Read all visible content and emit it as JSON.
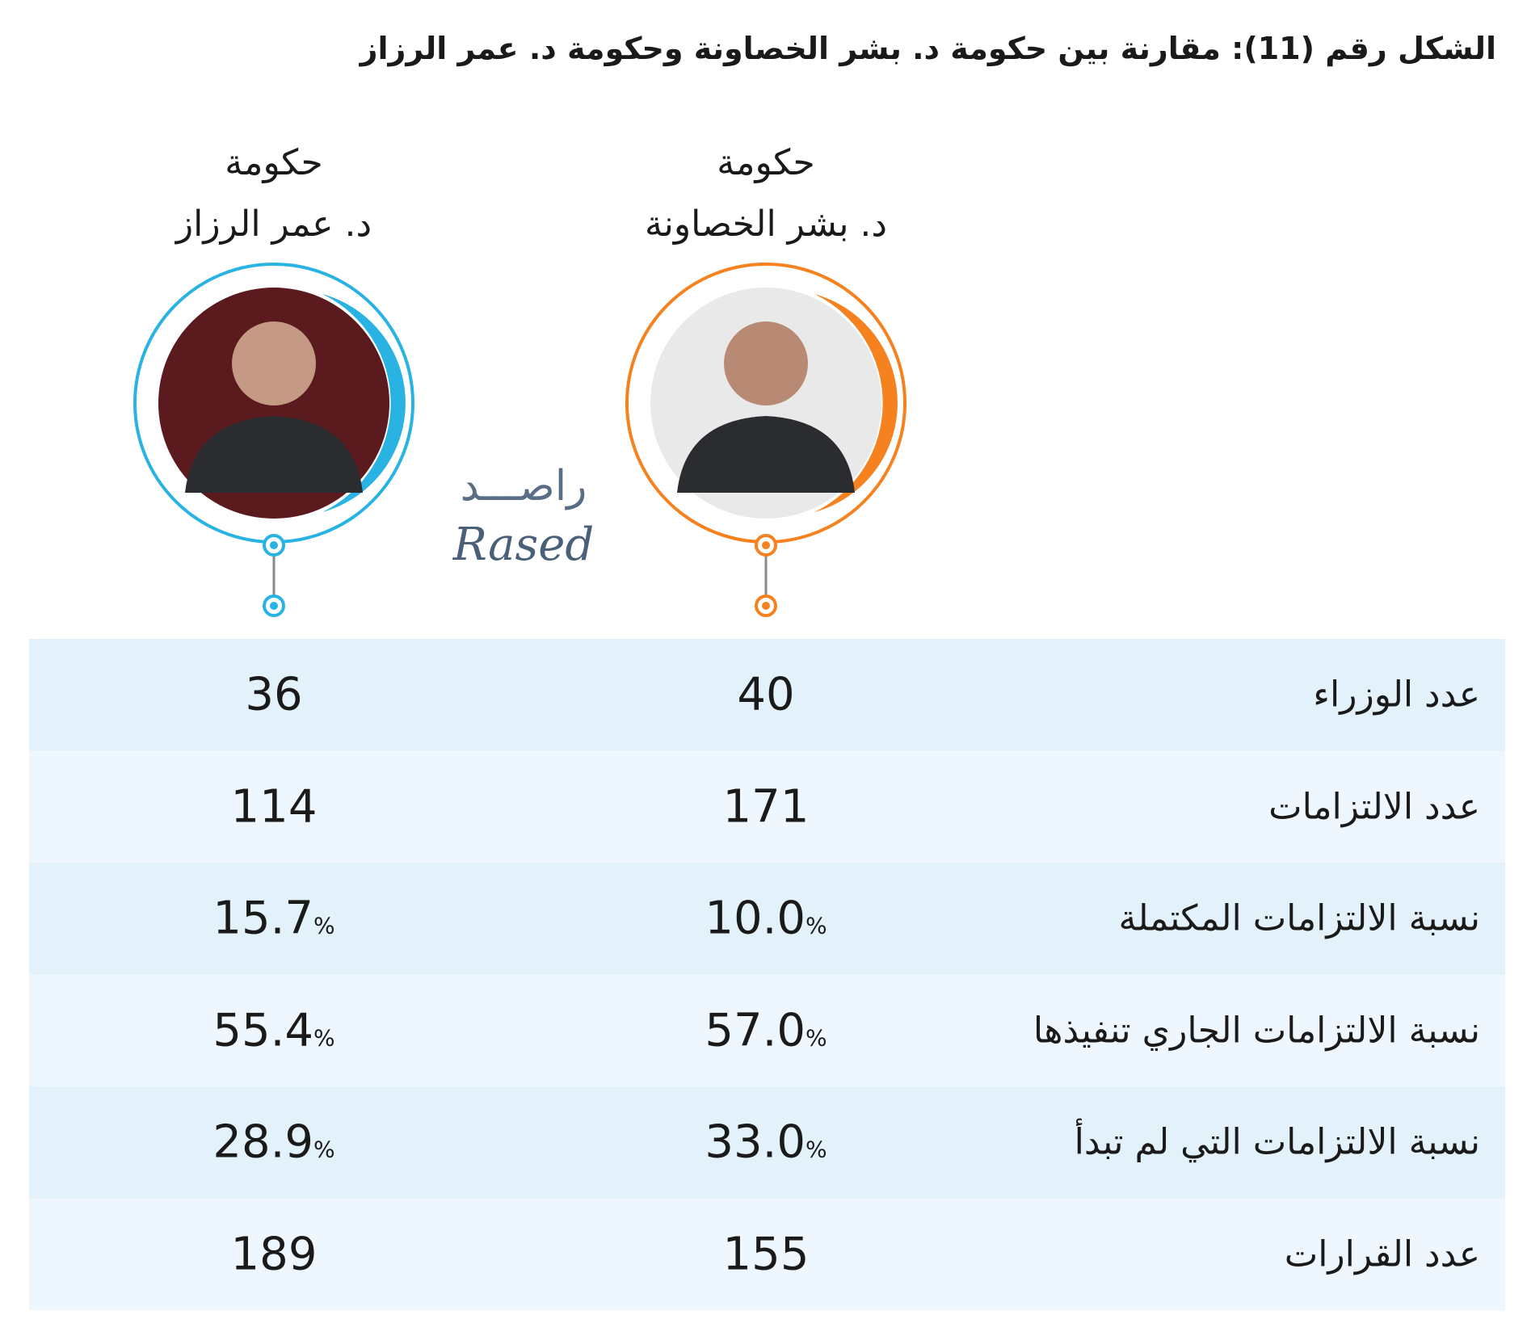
{
  "header": {
    "title": "الشكل رقم (11): مقارنة بين حكومة د. بشر الخصاونة وحكومة د. عمر الرزاز"
  },
  "columns": [
    {
      "line1": "حكومة",
      "line2": "د. عمر الرزاز",
      "color": "#29b3e3",
      "photo": "#5a1a1e"
    },
    {
      "line1": "حكومة",
      "line2": "د. بشر الخصاونة",
      "color": "#f5821f",
      "photo": "#e9e9ea"
    }
  ],
  "logo": {
    "arabic": "راصـــد",
    "latin": "Rased"
  },
  "table": {
    "rows": [
      {
        "label": "عدد الوزراء",
        "cells": [
          "36",
          "40"
        ]
      },
      {
        "label": "عدد الالتزامات",
        "cells": [
          "114",
          "171"
        ]
      },
      {
        "label": "نسبة الالتزامات المكتملة",
        "cells": [
          {
            "number": "15.7",
            "unit": "%"
          },
          {
            "number": "10.0",
            "unit": "%"
          }
        ]
      },
      {
        "label": "نسبة الالتزامات الجاري تنفيذها",
        "cells": [
          {
            "number": "55.4",
            "unit": "%"
          },
          {
            "number": "57.0",
            "unit": "%"
          }
        ]
      },
      {
        "label": "نسبة الالتزامات التي لم تبدأ",
        "cells": [
          {
            "number": "28.9",
            "unit": "%"
          },
          {
            "number": "33.0",
            "unit": "%"
          }
        ]
      },
      {
        "label": "عدد القرارات",
        "cells": [
          "189",
          "155"
        ]
      }
    ]
  }
}
